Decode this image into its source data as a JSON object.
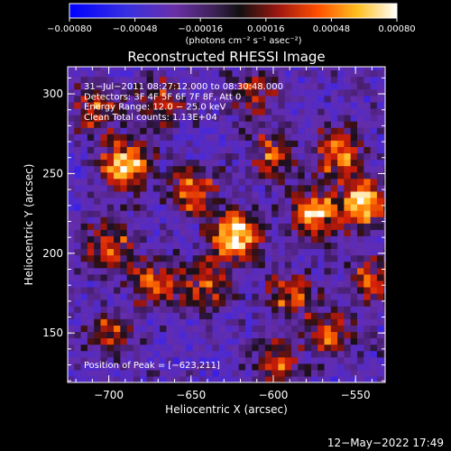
{
  "chart_data": {
    "type": "heatmap",
    "title": "Reconstructed RHESSI Image",
    "xlabel": "Heliocentric X (arcsec)",
    "ylabel": "Heliocentric Y (arcsec)",
    "xlim": [
      -725,
      -532
    ],
    "ylim": [
      119,
      317
    ],
    "x_ticks": [
      -700,
      -650,
      -600,
      -550
    ],
    "y_ticks": [
      150,
      200,
      250,
      300
    ],
    "x_tick_labels": [
      "−700",
      "−650",
      "−600",
      "−550"
    ],
    "y_tick_labels": [
      "150",
      "200",
      "250",
      "300"
    ],
    "colorbar": {
      "range": [
        -0.0008,
        0.0008
      ],
      "ticks": [
        -0.0008,
        -0.00048,
        -0.00016,
        0.00016,
        0.00048,
        0.0008
      ],
      "tick_labels": [
        "−0.00080",
        "−0.00048",
        "−0.00016",
        "0.00016",
        "0.00048",
        "0.00080"
      ],
      "unit": "(photons cm⁻² s⁻¹ asec⁻²)"
    },
    "annotations": [
      "31−Jul−2011 08:27:12.000 to 08:30:48.000",
      "Detectors: 3F 4F 5F 6F 7F 8F, Att 0",
      "Energy Range: 12.0 − 25.0 keV",
      "Clean     Total counts: 1.13E+04"
    ],
    "peak_label": "Position of Peak = [−623,211]",
    "peak": [
      -623,
      211
    ],
    "sources": [
      {
        "x": -623,
        "y": 211,
        "value": 0.0008
      },
      {
        "x": -690,
        "y": 256,
        "value": 0.0006
      },
      {
        "x": -575,
        "y": 225,
        "value": 0.00058
      },
      {
        "x": -545,
        "y": 232,
        "value": 0.00056
      },
      {
        "x": -560,
        "y": 262,
        "value": 0.00045
      },
      {
        "x": -650,
        "y": 240,
        "value": 0.00036
      },
      {
        "x": -600,
        "y": 262,
        "value": 0.00032
      },
      {
        "x": -672,
        "y": 182,
        "value": 0.00034
      },
      {
        "x": -700,
        "y": 205,
        "value": 0.0003
      },
      {
        "x": -640,
        "y": 180,
        "value": 0.0003
      },
      {
        "x": -590,
        "y": 175,
        "value": 0.00026
      },
      {
        "x": -565,
        "y": 150,
        "value": 0.00028
      },
      {
        "x": -710,
        "y": 290,
        "value": 0.00022
      },
      {
        "x": -612,
        "y": 300,
        "value": 0.0002
      },
      {
        "x": -670,
        "y": 295,
        "value": 0.0002
      },
      {
        "x": -598,
        "y": 132,
        "value": 0.00024
      },
      {
        "x": -700,
        "y": 150,
        "value": 0.0002
      },
      {
        "x": -540,
        "y": 185,
        "value": 0.00022
      }
    ],
    "grid": false
  },
  "timestamp": "12−May−2022 17:49",
  "colors": {
    "background": "#000000",
    "text": "#ffffff",
    "colormap": [
      "#0000ff",
      "#4a2cc8",
      "#6a30a8",
      "#202030",
      "#7a1a1a",
      "#d02010",
      "#ff7000",
      "#ffd040",
      "#ffffff"
    ]
  }
}
